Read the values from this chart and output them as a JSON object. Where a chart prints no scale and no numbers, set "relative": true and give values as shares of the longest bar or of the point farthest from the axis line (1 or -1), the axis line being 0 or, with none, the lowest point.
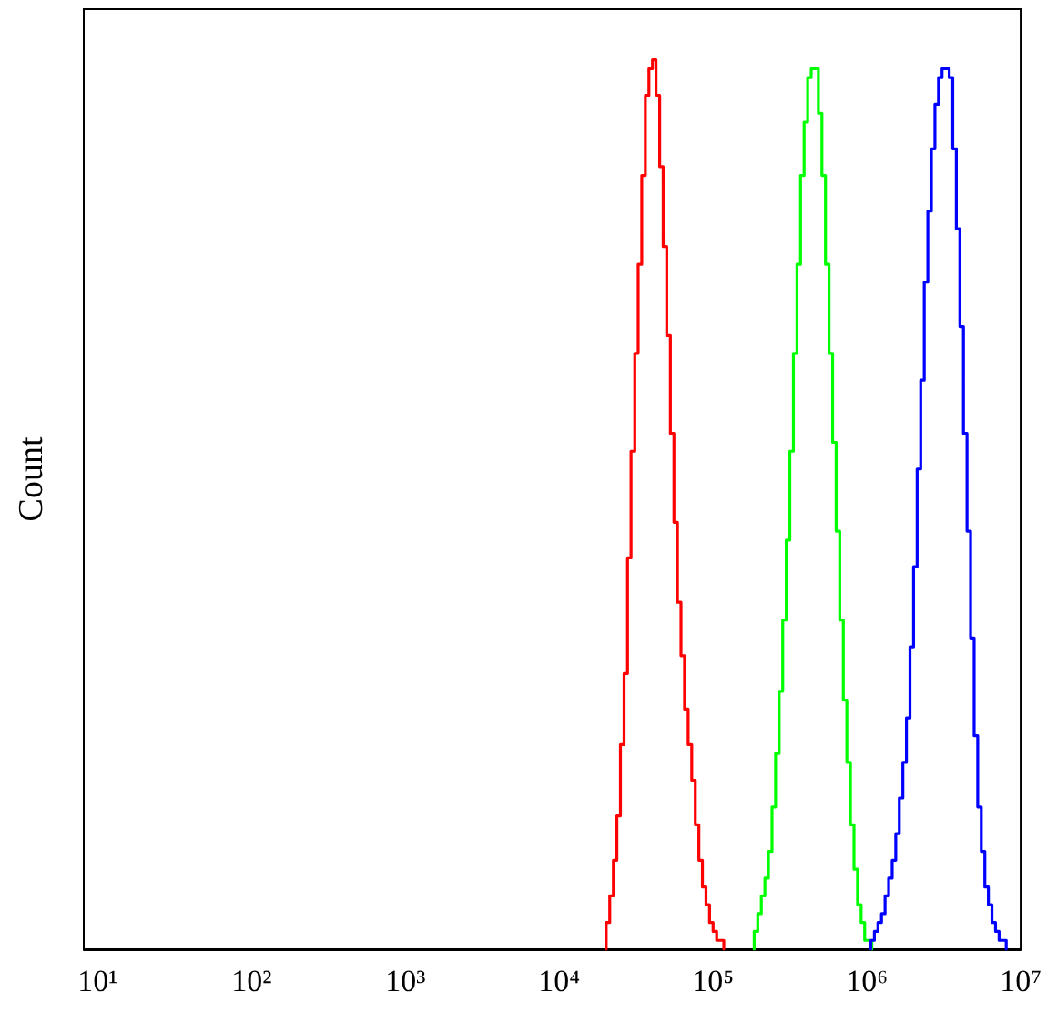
{
  "chart_data": {
    "type": "step",
    "ylabel": "Count",
    "relative": true,
    "log": "x",
    "grid": false,
    "xlim": [
      8.1,
      10000000
    ],
    "xticks": [
      {
        "value": 10,
        "label": "10¹"
      },
      {
        "value": 100,
        "label": "10²"
      },
      {
        "value": 1000,
        "label": "10³"
      },
      {
        "value": 10000,
        "label": "10⁴"
      },
      {
        "value": 100000,
        "label": "10⁵"
      },
      {
        "value": 1000000,
        "label": "10⁶"
      },
      {
        "value": 10000000,
        "label": "10⁷"
      }
    ],
    "series": [
      {
        "color": "#ff0000",
        "x": [
          20200,
          20200,
          21300,
          22500,
          23700,
          25000,
          26400,
          27800,
          29300,
          31000,
          32600,
          34400,
          36300,
          38300,
          40400,
          42600,
          45000,
          47400,
          50000,
          52800,
          55700,
          58700,
          61900,
          65300,
          68900,
          72700,
          76700,
          80900,
          85300,
          90000,
          94900,
          100100,
          105600,
          111400,
          117500
        ],
        "values": [
          0,
          0.03,
          0.06,
          0.1,
          0.15,
          0.23,
          0.31,
          0.44,
          0.56,
          0.67,
          0.77,
          0.87,
          0.96,
          0.99,
          1.0,
          0.96,
          0.88,
          0.79,
          0.69,
          0.58,
          0.48,
          0.39,
          0.33,
          0.27,
          0.23,
          0.19,
          0.14,
          0.1,
          0.07,
          0.05,
          0.03,
          0.02,
          0.01,
          0.01,
          0
        ]
      },
      {
        "color": "#00ff00",
        "x": [
          185200,
          185200,
          195300,
          206000,
          217300,
          229200,
          241800,
          255000,
          269000,
          283800,
          299300,
          315700,
          333000,
          351300,
          370500,
          390800,
          412200,
          434800,
          458700,
          483800,
          510300,
          538300,
          567800,
          598900,
          631700,
          666300,
          702800,
          741300,
          782000,
          824800,
          870000,
          917700,
          967800,
          1021000,
          1077000
        ],
        "values": [
          0,
          0.02,
          0.04,
          0.06,
          0.08,
          0.11,
          0.16,
          0.22,
          0.29,
          0.37,
          0.46,
          0.56,
          0.67,
          0.77,
          0.87,
          0.93,
          0.98,
          0.99,
          0.99,
          0.94,
          0.87,
          0.77,
          0.67,
          0.57,
          0.47,
          0.37,
          0.28,
          0.21,
          0.14,
          0.09,
          0.05,
          0.03,
          0.01,
          0.01,
          0
        ]
      },
      {
        "color": "#0000ff",
        "x": [
          1061000,
          1061000,
          1119000,
          1180000,
          1245000,
          1313000,
          1385000,
          1461000,
          1541000,
          1625000,
          1714000,
          1808000,
          1907000,
          2012000,
          2122000,
          2239000,
          2361000,
          2491000,
          2627000,
          2771000,
          2923000,
          3083000,
          3252000,
          3430000,
          3618000,
          3816000,
          4025000,
          4246000,
          4478000,
          4724000,
          4983000,
          5256000,
          5544000,
          5848000,
          6168000,
          6506000,
          6863000,
          7239000,
          7635000,
          8054000
        ],
        "values": [
          0,
          0.01,
          0.02,
          0.03,
          0.04,
          0.06,
          0.08,
          0.1,
          0.13,
          0.17,
          0.21,
          0.26,
          0.34,
          0.43,
          0.54,
          0.64,
          0.75,
          0.83,
          0.9,
          0.95,
          0.98,
          0.99,
          0.99,
          0.98,
          0.9,
          0.81,
          0.7,
          0.58,
          0.47,
          0.35,
          0.24,
          0.16,
          0.11,
          0.07,
          0.05,
          0.03,
          0.02,
          0.01,
          0.01,
          0
        ]
      }
    ]
  }
}
